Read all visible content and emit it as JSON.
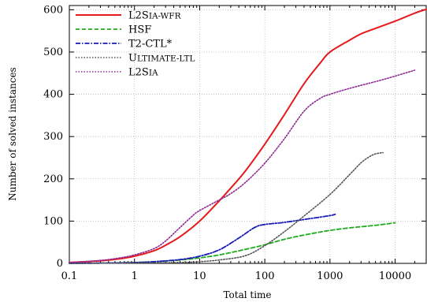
{
  "chart_data": {
    "type": "line",
    "xlabel": "Total time",
    "ylabel": "Number of solved instances",
    "x_scale": "log",
    "xlim": [
      0.1,
      30000
    ],
    "ylim": [
      0,
      610
    ],
    "x_ticks": [
      0.1,
      1,
      10,
      100,
      1000,
      10000
    ],
    "x_tick_labels": [
      "0.1",
      "1",
      "10",
      "100",
      "1000",
      "10000"
    ],
    "y_ticks": [
      0,
      100,
      200,
      300,
      400,
      500,
      600
    ],
    "y_tick_labels": [
      "0",
      "100",
      "200",
      "300",
      "400",
      "500",
      "600"
    ],
    "grid": true,
    "legend_position": "top-left",
    "series": [
      {
        "name": "L2SIA-WFR",
        "color": "#e41a1c",
        "style": "solid",
        "x": [
          0.1,
          0.3,
          0.6,
          1,
          2,
          3,
          5,
          10,
          20,
          30,
          50,
          100,
          200,
          400,
          700,
          1000,
          2000,
          3000,
          5000,
          10000,
          20000,
          30000
        ],
        "y": [
          2,
          6,
          11,
          17,
          30,
          43,
          63,
          100,
          148,
          178,
          218,
          282,
          352,
          425,
          473,
          500,
          528,
          543,
          556,
          573,
          592,
          601
        ]
      },
      {
        "name": "HSF",
        "color": "#1faa1f",
        "style": "dashed",
        "x": [
          0.1,
          0.5,
          1,
          2,
          5,
          10,
          20,
          50,
          100,
          200,
          400,
          700,
          1000,
          2000,
          5000,
          10000
        ],
        "y": [
          0,
          1,
          2,
          4,
          8,
          13,
          20,
          33,
          44,
          57,
          67,
          74,
          78,
          84,
          90,
          96
        ]
      },
      {
        "name": "T2-CTL*",
        "color": "#1a1ab8",
        "style": "dashdot",
        "x": [
          0.1,
          0.5,
          1,
          2,
          5,
          10,
          20,
          40,
          70,
          100,
          200,
          500,
          1000,
          1200
        ],
        "y": [
          0,
          1,
          2,
          4,
          9,
          17,
          32,
          60,
          85,
          92,
          97,
          106,
          113,
          116
        ]
      },
      {
        "name": "ULTIMATE-LTL",
        "color": "#555555",
        "style": "dotted",
        "x": [
          0.1,
          1,
          5,
          10,
          20,
          50,
          100,
          200,
          400,
          1000,
          2000,
          3000,
          4000,
          5000,
          6500
        ],
        "y": [
          0,
          1,
          2,
          4,
          8,
          18,
          42,
          75,
          112,
          163,
          210,
          238,
          252,
          259,
          262
        ]
      },
      {
        "name": "L2SIA",
        "color": "#8e2a94",
        "style": "dotted",
        "x": [
          0.1,
          0.3,
          0.6,
          1,
          2,
          3,
          5,
          8,
          10,
          20,
          30,
          50,
          100,
          200,
          400,
          700,
          1000,
          2000,
          5000,
          10000,
          20000
        ],
        "y": [
          2,
          7,
          13,
          20,
          35,
          53,
          85,
          114,
          125,
          150,
          165,
          191,
          237,
          295,
          360,
          390,
          400,
          414,
          430,
          443,
          457
        ]
      }
    ]
  },
  "legend": [
    {
      "label_main": "L2S",
      "label_small": "IA-WFR"
    },
    {
      "label_main": "HSF",
      "label_small": ""
    },
    {
      "label_main": "T2-CTL*",
      "label_small": ""
    },
    {
      "label_main": "U",
      "label_small": "LTIMATE-LTL"
    },
    {
      "label_main": "L2S",
      "label_small": "IA"
    }
  ]
}
